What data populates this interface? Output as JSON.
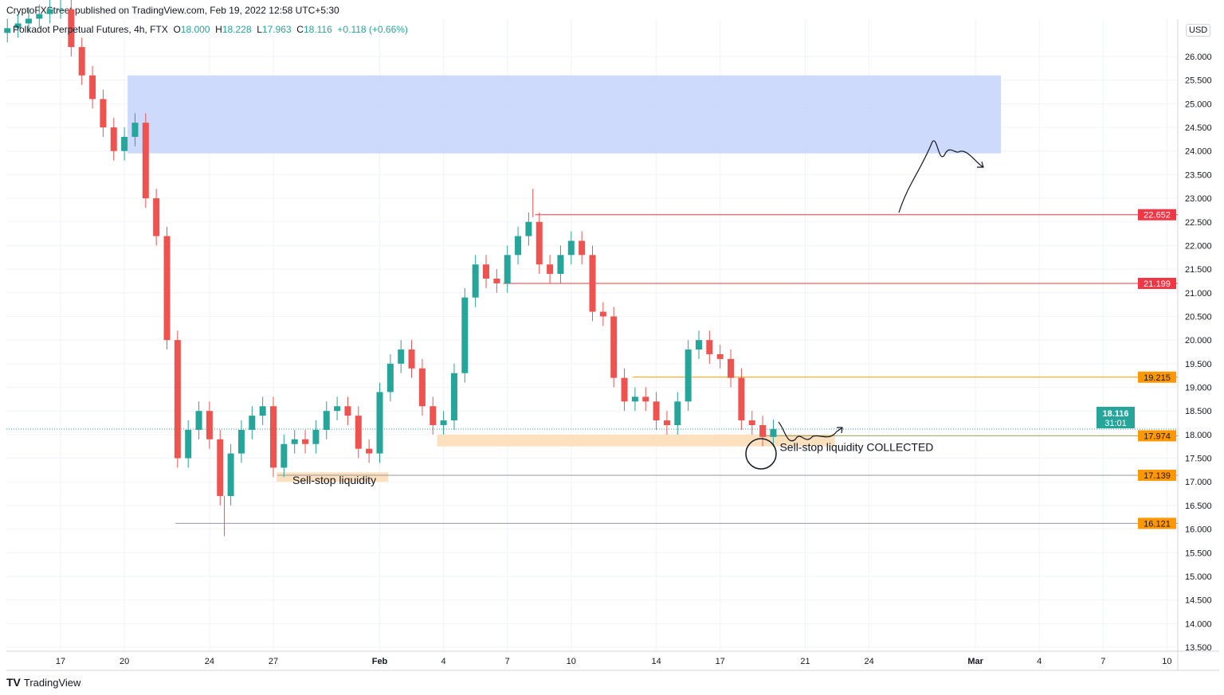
{
  "header": {
    "published": "CryptoFXStreet published on TradingView.com, Feb 19, 2022 12:58 UTC+5:30",
    "symbol": "Polkadot Perpetual Futures, 4h, FTX",
    "o_label": "O",
    "o": "18.000",
    "h_label": "H",
    "h": "18.228",
    "l_label": "L",
    "l": "17.963",
    "c_label": "C",
    "c": "18.116",
    "change": "+0.118 (+0.66%)"
  },
  "currency": "USD",
  "footer": {
    "brand": "TradingView"
  },
  "colors": {
    "up": "#26a69a",
    "down": "#ef5350",
    "red_level": "#f23645",
    "orange_level": "#ff9800",
    "zone_blue": "#c5d3fb",
    "zone_orange": "#fde0bd"
  },
  "chart_data": {
    "type": "candlestick",
    "interval_note": "approximate path, one point per 12h",
    "start_day_offset_from_jan17": -2.5,
    "step_days": 0.5,
    "first_open": 26.5,
    "closes": [
      26.6,
      26.7,
      26.8,
      26.9,
      27,
      27,
      26.2,
      25.6,
      25.1,
      24.5,
      24.0,
      24.3,
      24.6,
      23.0,
      22.2,
      20.0,
      17.5,
      18.1,
      18.5,
      17.9,
      16.7,
      17.6,
      18.1,
      18.4,
      18.6,
      17.3,
      17.8,
      17.9,
      17.8,
      18.1,
      18.5,
      18.6,
      18.4,
      17.7,
      17.6,
      18.9,
      19.5,
      19.8,
      19.4,
      18.6,
      18.2,
      18.3,
      19.3,
      20.9,
      21.6,
      21.3,
      21.2,
      21.8,
      22.2,
      22.5,
      21.6,
      21.4,
      21.8,
      22.1,
      21.8,
      20.6,
      20.5,
      19.2,
      18.7,
      18.8,
      18.7,
      18.3,
      18.2,
      18.7,
      19.8,
      20.0,
      19.7,
      19.6,
      19.2,
      18.3,
      18.2,
      17.95,
      18.116
    ],
    "ylim": [
      13.25,
      27.2
    ],
    "y_ticks": [
      "13.500",
      "14.000",
      "14.500",
      "15.000",
      "15.500",
      "16.000",
      "16.500",
      "17.000",
      "17.500",
      "18.000",
      "18.500",
      "19.000",
      "19.500",
      "20.000",
      "20.500",
      "21.000",
      "21.500",
      "22.000",
      "22.500",
      "23.000",
      "23.500",
      "24.000",
      "24.500",
      "25.000",
      "25.500",
      "26.000"
    ],
    "x_ticks": [
      {
        "label": "17",
        "day": 0
      },
      {
        "label": "20",
        "day": 3
      },
      {
        "label": "24",
        "day": 7
      },
      {
        "label": "27",
        "day": 10
      },
      {
        "label": "Feb",
        "day": 15,
        "bold": true
      },
      {
        "label": "4",
        "day": 18
      },
      {
        "label": "7",
        "day": 21
      },
      {
        "label": "10",
        "day": 24
      },
      {
        "label": "14",
        "day": 28
      },
      {
        "label": "17",
        "day": 31
      },
      {
        "label": "21",
        "day": 35
      },
      {
        "label": "24",
        "day": 38
      },
      {
        "label": "Mar",
        "day": 43,
        "bold": true
      },
      {
        "label": "4",
        "day": 46
      },
      {
        "label": "7",
        "day": 49
      },
      {
        "label": "10",
        "day": 52
      }
    ],
    "levels": [
      {
        "value": "22.652",
        "price": 22.652,
        "color": "#f23645",
        "from_day": 22.3
      },
      {
        "value": "21.199",
        "price": 21.199,
        "color": "#f23645",
        "from_day": 20.8
      },
      {
        "value": "19.215",
        "price": 19.215,
        "color": "#ff9800",
        "from_day": 26.9
      },
      {
        "value": "17.974",
        "price": 17.974,
        "color": "#a0a060",
        "from_day": 32.9
      },
      {
        "value": "17.139",
        "price": 17.139,
        "color": "#9598a1",
        "from_day": 10.2
      },
      {
        "value": "16.121",
        "price": 16.121,
        "color": "#9598a1",
        "from_day": 5.4
      }
    ],
    "last_price": {
      "value": "18.116",
      "countdown": "31:01",
      "price": 18.116
    },
    "zones": [
      {
        "name": "supply-zone",
        "color": "#c5d3fb",
        "from_day": 3.15,
        "to_day": 44.2,
        "low": 23.95,
        "high": 25.6
      },
      {
        "name": "sell-stop-zone-1",
        "color": "#fde0bd",
        "from_day": 10.15,
        "to_day": 15.4,
        "low": 17.0,
        "high": 17.2
      },
      {
        "name": "sell-stop-zone-2",
        "color": "#fde0bd",
        "from_day": 17.7,
        "to_day": 36.4,
        "low": 17.75,
        "high": 18.0
      }
    ],
    "annotations": [
      {
        "text": "Sell-stop liquidity",
        "day": 10.9,
        "price": 16.95
      },
      {
        "text": "Sell-stop liquidity COLLECTED",
        "day": 33.8,
        "price": 17.65
      }
    ]
  }
}
